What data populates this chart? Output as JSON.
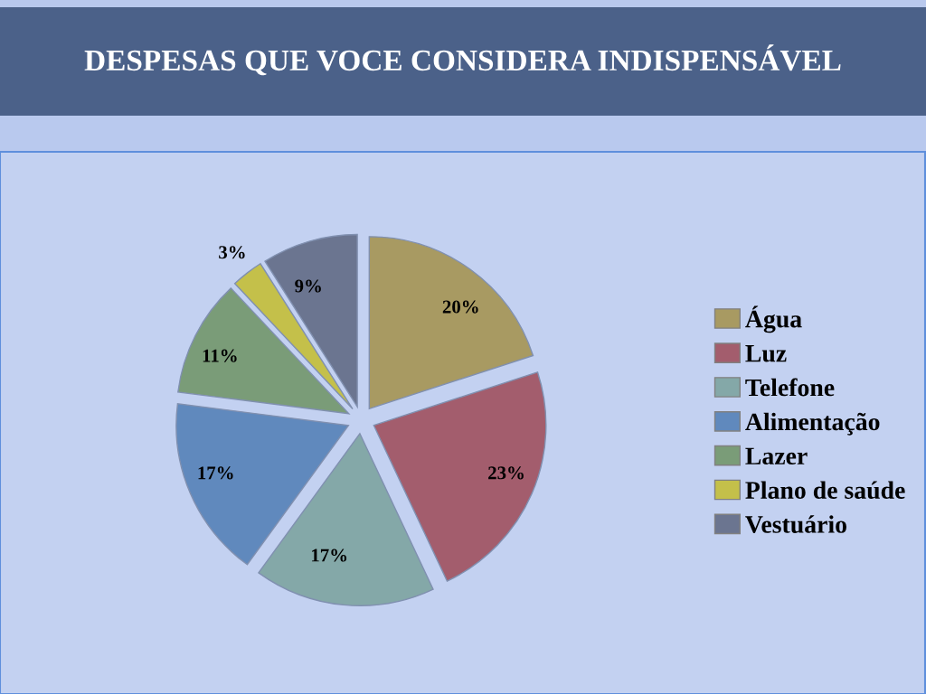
{
  "chart_data": {
    "type": "pie",
    "title": "DESPESAS QUE VOCE CONSIDERA INDISPENSÁVEL",
    "categories": [
      "Água",
      "Luz",
      "Telefone",
      "Alimentação",
      "Lazer",
      "Plano de saúde",
      "Vestuário"
    ],
    "values": [
      20,
      23,
      17,
      17,
      11,
      3,
      9
    ],
    "value_labels": [
      "20%",
      "23%",
      "17%",
      "17%",
      "11%",
      "3%",
      "9%"
    ],
    "colors": [
      "#a89a62",
      "#a35d6d",
      "#84a8a8",
      "#6089bd",
      "#7a9c78",
      "#c4c04a",
      "#6b7590"
    ],
    "legend": "right"
  }
}
